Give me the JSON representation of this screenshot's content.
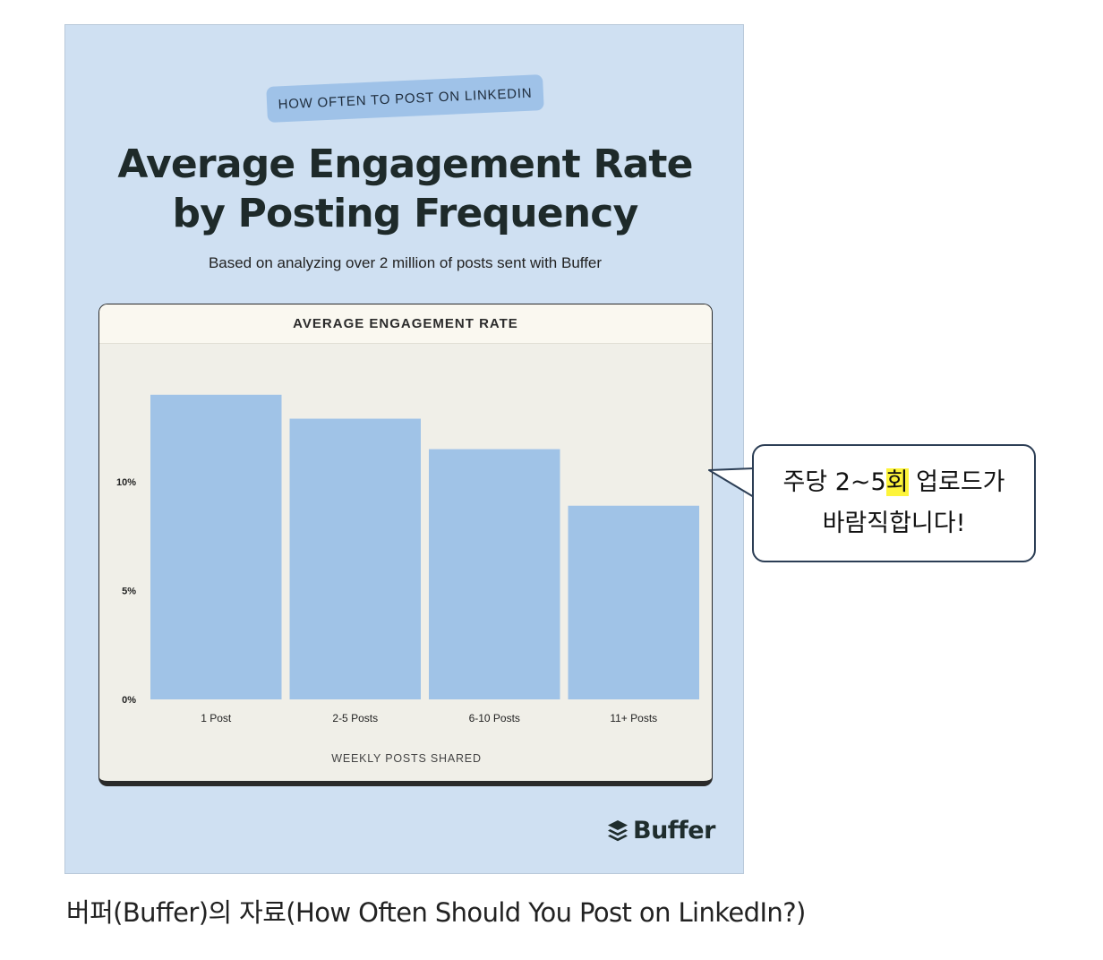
{
  "card": {
    "kicker": "HOW OFTEN TO POST ON LINKEDIN",
    "title_line1": "Average Engagement Rate",
    "title_line2": "by Posting Frequency",
    "subtitle": "Based on analyzing over 2 million of posts sent with Buffer",
    "logo_text": "Buffer",
    "logo_icon": "buffer-stack-icon"
  },
  "chart_data": {
    "type": "bar",
    "title": "AVERAGE ENGAGEMENT RATE",
    "xlabel": "WEEKLY POSTS SHARED",
    "ylabel": "",
    "categories": [
      "1 Post",
      "2-5 Posts",
      "6-10 Posts",
      "11+ Posts"
    ],
    "values": [
      14.0,
      12.9,
      11.5,
      8.9
    ],
    "yticks": [
      "0%",
      "5%",
      "10%"
    ],
    "ytick_values": [
      0,
      5,
      10
    ],
    "ylim": [
      0,
      15
    ],
    "bar_color": "#a0c3e7",
    "grid": false,
    "legend": "none"
  },
  "callout": {
    "line1_before": "주당 2~5",
    "line1_highlight": "회",
    "line1_after": " 업로드가",
    "line2": "바람직합니다!"
  },
  "caption": "버퍼(Buffer)의 자료(How Often Should You Post on LinkedIn?)",
  "colors": {
    "card_background": "#cfe0f2",
    "kicker_background": "#9fc2e8",
    "panel_background": "#f0efe8",
    "highlight": "#fdf43a"
  }
}
